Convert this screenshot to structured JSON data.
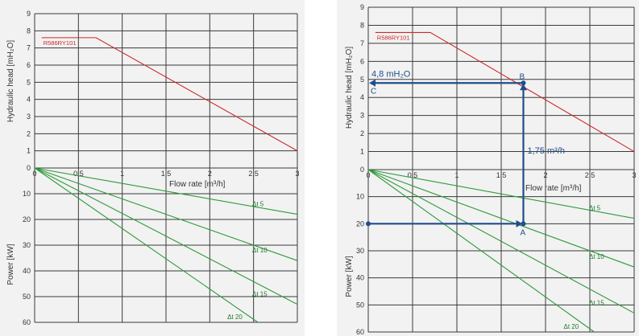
{
  "chart_data": [
    {
      "type": "line",
      "panel": "left",
      "xlabel": "Flow rate [m³/h]",
      "ylabel_top": "Hydraulic head [mH₂O]",
      "ylabel_bottom": "Power [kW]",
      "x_ticks": [
        "0",
        "0,5",
        "1",
        "1,5",
        "2",
        "2,5",
        "3"
      ],
      "x_values": [
        0,
        0.5,
        1,
        1.5,
        2,
        2.5,
        3
      ],
      "top_y_ticks": [
        "0",
        "1",
        "2",
        "3",
        "4",
        "5",
        "6",
        "7",
        "8",
        "9"
      ],
      "top_y_values": [
        0,
        1,
        2,
        3,
        4,
        5,
        6,
        7,
        8,
        9
      ],
      "bottom_y_ticks": [
        "0",
        "10",
        "20",
        "30",
        "40",
        "50",
        "60"
      ],
      "bottom_y_values": [
        0,
        10,
        20,
        30,
        40,
        50,
        60
      ],
      "xlim": [
        0,
        3
      ],
      "ylim_top": [
        0,
        9
      ],
      "ylim_bottom": [
        0,
        60
      ],
      "pump_curve": {
        "name": "R586RY101",
        "x": [
          0.08,
          0.7,
          3.0
        ],
        "y": [
          7.6,
          7.6,
          1.0
        ]
      },
      "power_series": [
        {
          "name": "Δt 5",
          "end_x": 3.0,
          "end_y": 18
        },
        {
          "name": "Δt 10",
          "end_x": 3.0,
          "end_y": 36
        },
        {
          "name": "Δt 15",
          "end_x": 3.0,
          "end_y": 53
        },
        {
          "name": "Δt 20",
          "end_x": 2.55,
          "end_y": 60
        }
      ]
    },
    {
      "type": "line",
      "panel": "right",
      "xlabel": "Flow rate [m³/h]",
      "ylabel_top": "Hydraulic head [mH₂O]",
      "ylabel_bottom": "Power [kW]",
      "x_ticks": [
        "0",
        "0,5",
        "1",
        "1,5",
        "2",
        "2,5",
        "3"
      ],
      "x_values": [
        0,
        0.5,
        1,
        1.5,
        2,
        2.5,
        3
      ],
      "top_y_ticks": [
        "0",
        "1",
        "2",
        "3",
        "4",
        "5",
        "6",
        "7",
        "8",
        "9"
      ],
      "top_y_values": [
        0,
        1,
        2,
        3,
        4,
        5,
        6,
        7,
        8,
        9
      ],
      "bottom_y_ticks": [
        "0",
        "10",
        "20",
        "30",
        "40",
        "50",
        "60"
      ],
      "bottom_y_values": [
        0,
        10,
        20,
        30,
        40,
        50,
        60
      ],
      "xlim": [
        0,
        3
      ],
      "ylim_top": [
        0,
        9
      ],
      "ylim_bottom": [
        0,
        60
      ],
      "pump_curve": {
        "name": "R586RY101",
        "x": [
          0.08,
          0.7,
          3.0
        ],
        "y": [
          7.6,
          7.6,
          1.0
        ]
      },
      "power_series": [
        {
          "name": "Δt 5",
          "end_x": 3.0,
          "end_y": 18
        },
        {
          "name": "Δt 10",
          "end_x": 3.0,
          "end_y": 36
        },
        {
          "name": "Δt 15",
          "end_x": 3.0,
          "end_y": 53
        },
        {
          "name": "Δt 20",
          "end_x": 2.55,
          "end_y": 60
        }
      ],
      "annotations": {
        "point_A": {
          "label": "A",
          "x": 1.75,
          "power": 20
        },
        "point_B": {
          "label": "B",
          "x": 1.75,
          "head": 4.8
        },
        "point_C": {
          "label": "C",
          "x": 0,
          "head": 4.8
        },
        "start_power": 20,
        "flow_label": "1,75 m³/h",
        "head_label": "4,8 mH₂O"
      }
    }
  ]
}
